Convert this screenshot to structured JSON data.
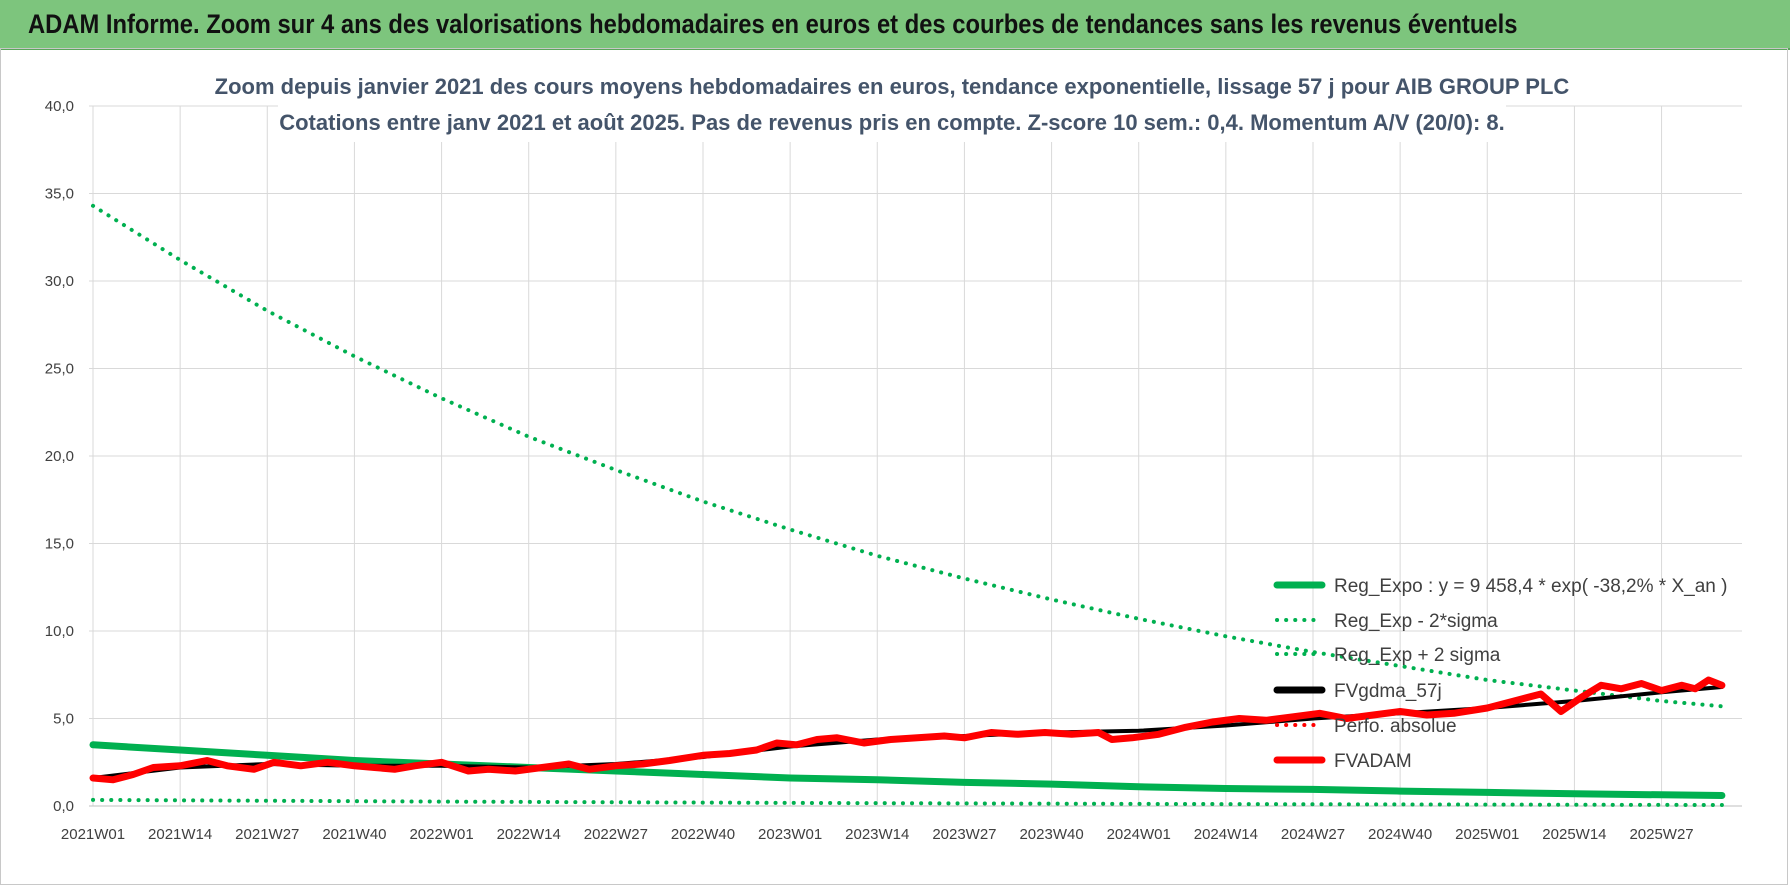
{
  "banner": {
    "title": "ADAM Informe. Zoom sur 4 ans des valorisations hebdomadaires en euros et des courbes de tendances sans les revenus éventuels"
  },
  "chart_data": {
    "type": "line",
    "title": "Zoom depuis janvier 2021 des cours moyens hebdomadaires en euros, tendance exponentielle, lissage 57 j pour AIB GROUP PLC",
    "subtitle": "Cotations entre janv 2021 et août 2025. Pas de revenus pris en compte. Z-score 10 sem.: 0,4. Momentum A/V (20/0): 8.",
    "xlabel": "",
    "ylabel": "",
    "ylim": [
      0,
      40
    ],
    "y_ticks": [
      "0,0",
      "5,0",
      "10,0",
      "15,0",
      "20,0",
      "25,0",
      "30,0",
      "35,0",
      "40,0"
    ],
    "categories": [
      "2021W01",
      "2021W14",
      "2021W27",
      "2021W40",
      "2022W01",
      "2022W14",
      "2022W27",
      "2022W40",
      "2023W01",
      "2023W14",
      "2023W27",
      "2023W40",
      "2024W01",
      "2024W14",
      "2024W27",
      "2024W40",
      "2025W01",
      "2025W14",
      "2025W27"
    ],
    "grid": true,
    "legend_position": "bottom-right",
    "series": [
      {
        "name": "Reg_Expo : y = 9 458,4 * exp( -38,2% *  X_an )",
        "color": "#00b050",
        "style": "solid",
        "x": [
          0,
          13,
          26,
          39,
          52,
          65,
          78,
          91,
          104,
          117,
          130,
          143,
          156,
          169,
          182,
          195,
          208,
          221,
          234,
          243
        ],
        "values": [
          3.5,
          3.2,
          2.9,
          2.6,
          2.4,
          2.2,
          2.0,
          1.8,
          1.6,
          1.5,
          1.35,
          1.25,
          1.1,
          1.0,
          0.95,
          0.85,
          0.78,
          0.7,
          0.64,
          0.6
        ]
      },
      {
        "name": "Reg_Exp - 2*sigma",
        "color": "#00b050",
        "style": "dotted",
        "x": [
          0,
          52,
          104,
          156,
          208,
          243
        ],
        "values": [
          0.35,
          0.25,
          0.18,
          0.12,
          0.08,
          0.06
        ]
      },
      {
        "name": "Reg_Exp + 2 sigma",
        "color": "#00b050",
        "style": "dotted",
        "x": [
          0,
          13,
          26,
          39,
          52,
          65,
          78,
          91,
          104,
          117,
          130,
          143,
          156,
          169,
          182,
          195,
          208,
          221,
          234,
          243
        ],
        "values": [
          34.3,
          31.2,
          28.3,
          25.7,
          23.3,
          21.1,
          19.2,
          17.4,
          15.8,
          14.3,
          13.0,
          11.8,
          10.7,
          9.7,
          8.8,
          8.0,
          7.2,
          6.6,
          6.0,
          5.7
        ]
      },
      {
        "name": "FVgdma_57j",
        "color": "#000000",
        "style": "solid",
        "x": [
          0,
          13,
          26,
          39,
          52,
          65,
          78,
          91,
          104,
          117,
          130,
          143,
          156,
          169,
          182,
          195,
          208,
          221,
          234,
          243
        ],
        "values": [
          1.6,
          2.2,
          2.4,
          2.3,
          2.3,
          2.2,
          2.4,
          2.8,
          3.4,
          3.8,
          4.0,
          4.2,
          4.3,
          4.6,
          5.0,
          5.3,
          5.6,
          6.0,
          6.5,
          6.8
        ]
      },
      {
        "name": "Perfo. absolue",
        "color": "#ff0000",
        "style": "dotted",
        "x": [],
        "values": []
      },
      {
        "name": "FVADAM",
        "color": "#ff0000",
        "style": "solid",
        "x": [
          0,
          3,
          6,
          9,
          13,
          17,
          20,
          24,
          27,
          31,
          35,
          39,
          42,
          45,
          48,
          52,
          56,
          59,
          63,
          67,
          71,
          74,
          78,
          82,
          86,
          91,
          95,
          99,
          102,
          105,
          108,
          111,
          115,
          119,
          123,
          127,
          130,
          134,
          138,
          142,
          146,
          150,
          152,
          155,
          159,
          163,
          167,
          171,
          175,
          179,
          183,
          187,
          191,
          195,
          199,
          203,
          208,
          212,
          216,
          219,
          222,
          225,
          228,
          231,
          234,
          237,
          239,
          241,
          243
        ],
        "values": [
          1.6,
          1.5,
          1.8,
          2.2,
          2.3,
          2.6,
          2.3,
          2.1,
          2.5,
          2.3,
          2.5,
          2.3,
          2.2,
          2.1,
          2.3,
          2.5,
          2.0,
          2.1,
          2.0,
          2.2,
          2.4,
          2.1,
          2.3,
          2.4,
          2.6,
          2.9,
          3.0,
          3.2,
          3.6,
          3.5,
          3.8,
          3.9,
          3.6,
          3.8,
          3.9,
          4.0,
          3.9,
          4.2,
          4.1,
          4.2,
          4.1,
          4.2,
          3.8,
          3.9,
          4.1,
          4.5,
          4.8,
          5.0,
          4.9,
          5.1,
          5.3,
          5.0,
          5.2,
          5.4,
          5.2,
          5.3,
          5.6,
          6.0,
          6.4,
          5.4,
          6.2,
          6.9,
          6.7,
          7.0,
          6.6,
          6.9,
          6.7,
          7.2,
          6.9
        ]
      }
    ]
  }
}
